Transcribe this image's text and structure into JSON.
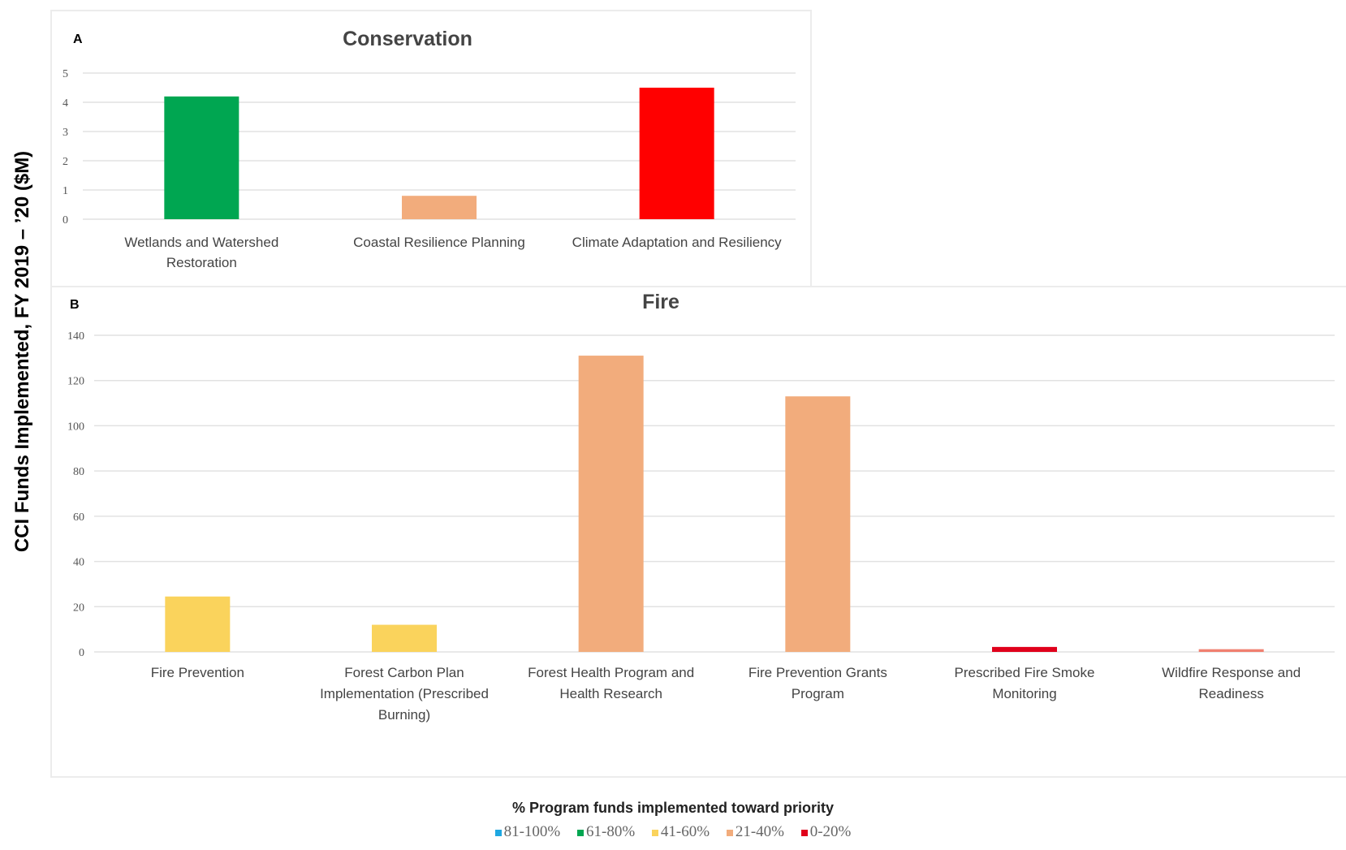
{
  "y_axis_label": "CCI Funds Implemented, FY 2019 –  ’20 ($M)",
  "chart_data": [
    {
      "type": "bar",
      "panel_letter": "A",
      "title": "Conservation",
      "ylim": [
        0,
        5
      ],
      "ticks": [
        0,
        1,
        2,
        3,
        4,
        5
      ],
      "grid": true,
      "categories": [
        [
          "Wetlands and Watershed",
          "Restoration"
        ],
        [
          "Coastal Resilience Planning"
        ],
        [
          "Climate Adaptation and Resiliency"
        ]
      ],
      "values": [
        4.2,
        0.8,
        4.5
      ],
      "colors": [
        "#00a651",
        "#f2ac7c",
        "#ff0000"
      ]
    },
    {
      "type": "bar",
      "panel_letter": "B",
      "title": "Fire",
      "ylim": [
        0,
        140
      ],
      "ticks": [
        0,
        20,
        40,
        60,
        80,
        100,
        120,
        140
      ],
      "grid": true,
      "categories": [
        [
          "Fire Prevention"
        ],
        [
          "Forest Carbon Plan",
          "Implementation (Prescribed",
          "Burning)"
        ],
        [
          "Forest Health Program and",
          "Health Research"
        ],
        [
          "Fire Prevention Grants",
          "Program"
        ],
        [
          "Prescribed Fire Smoke",
          "Monitoring"
        ],
        [
          "Wildfire Response and",
          "Readiness"
        ]
      ],
      "values": [
        24.5,
        12,
        131,
        113,
        2.2,
        1.2
      ],
      "colors": [
        "#fad35c",
        "#fad35c",
        "#f2ac7c",
        "#f2ac7c",
        "#e0001b",
        "#f08070"
      ]
    }
  ],
  "legend": {
    "title": "% Program funds implemented toward priority",
    "placement": "bottom-center",
    "items": [
      {
        "label": "81-100%",
        "color": "#1ea7e1"
      },
      {
        "label": "61-80%",
        "color": "#00a651"
      },
      {
        "label": "41-60%",
        "color": "#fad35c"
      },
      {
        "label": "21-40%",
        "color": "#f2ac7c"
      },
      {
        "label": "0-20%",
        "color": "#e0001b"
      }
    ]
  }
}
